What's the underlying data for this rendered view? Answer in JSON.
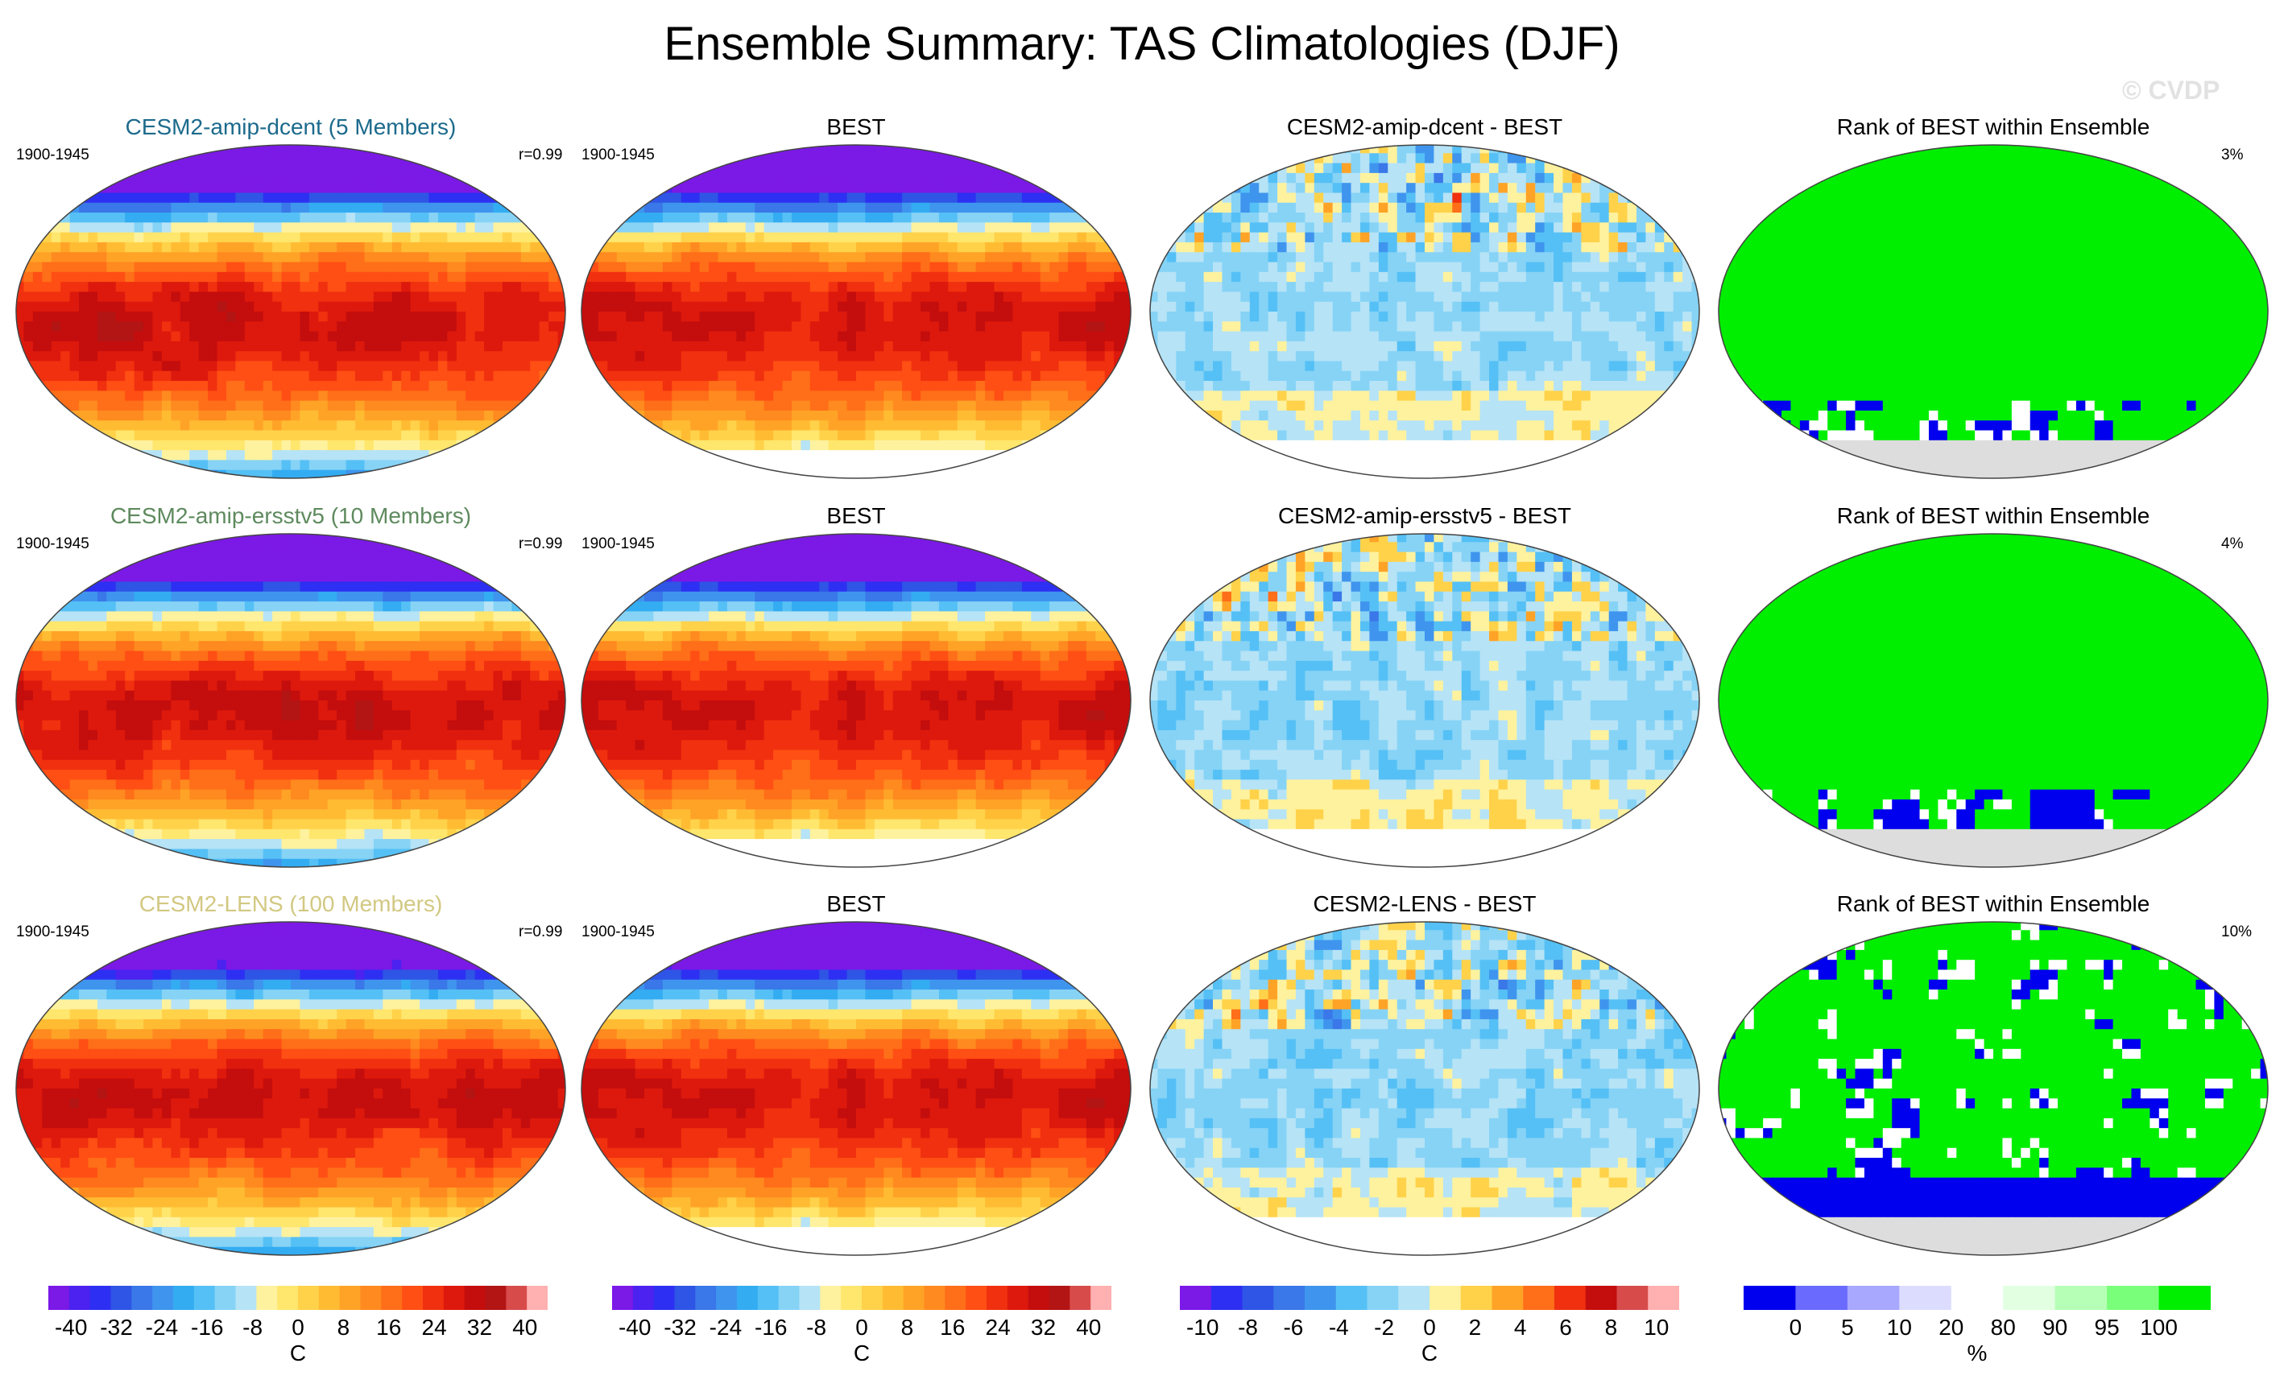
{
  "title": "Ensemble Summary: TAS Climatologies (DJF)",
  "watermark": "© CVDP",
  "chart_data": [
    {
      "type": "heatmap",
      "row": 0,
      "col": 0,
      "kind": "temp",
      "title": "CESM2-amip-dcent (5 Members)",
      "title_color": "#1c6a8c",
      "period": "1900-1945",
      "stat": "r=0.99",
      "units": "C",
      "ylim": [
        -40,
        40
      ],
      "seed": 3
    },
    {
      "type": "heatmap",
      "row": 0,
      "col": 1,
      "kind": "temp",
      "title": "BEST",
      "title_color": "#000000",
      "period": "1900-1945",
      "stat": "",
      "units": "C",
      "ylim": [
        -40,
        40
      ],
      "seed": 5
    },
    {
      "type": "heatmap",
      "row": 0,
      "col": 2,
      "kind": "diff",
      "title": "CESM2-amip-dcent - BEST",
      "title_color": "#000000",
      "period": "",
      "stat": "",
      "units": "C",
      "ylim": [
        -10,
        10
      ],
      "seed": 7
    },
    {
      "type": "heatmap",
      "row": 0,
      "col": 3,
      "kind": "rank",
      "title": "Rank of BEST within Ensemble",
      "title_color": "#000000",
      "period": "",
      "stat": "3%",
      "units": "%",
      "seed": 11,
      "level": 0.05
    },
    {
      "type": "heatmap",
      "row": 1,
      "col": 0,
      "kind": "temp",
      "title": "CESM2-amip-ersstv5 (10 Members)",
      "title_color": "#5e8a5e",
      "period": "1900-1945",
      "stat": "r=0.99",
      "units": "C",
      "ylim": [
        -40,
        40
      ],
      "seed": 13
    },
    {
      "type": "heatmap",
      "row": 1,
      "col": 1,
      "kind": "temp",
      "title": "BEST",
      "title_color": "#000000",
      "period": "1900-1945",
      "stat": "",
      "units": "C",
      "ylim": [
        -40,
        40
      ],
      "seed": 5
    },
    {
      "type": "heatmap",
      "row": 1,
      "col": 2,
      "kind": "diff",
      "title": "CESM2-amip-ersstv5 - BEST",
      "title_color": "#000000",
      "period": "",
      "stat": "",
      "units": "C",
      "ylim": [
        -10,
        10
      ],
      "seed": 17
    },
    {
      "type": "heatmap",
      "row": 1,
      "col": 3,
      "kind": "rank",
      "title": "Rank of BEST within Ensemble",
      "title_color": "#000000",
      "period": "",
      "stat": "4%",
      "units": "%",
      "seed": 19,
      "level": 0.12
    },
    {
      "type": "heatmap",
      "row": 2,
      "col": 0,
      "kind": "temp",
      "title": "CESM2-LENS (100 Members)",
      "title_color": "#d2c882",
      "period": "1900-1945",
      "stat": "r=0.99",
      "units": "C",
      "ylim": [
        -40,
        40
      ],
      "seed": 23
    },
    {
      "type": "heatmap",
      "row": 2,
      "col": 1,
      "kind": "temp",
      "title": "BEST",
      "title_color": "#000000",
      "period": "1900-1945",
      "stat": "",
      "units": "C",
      "ylim": [
        -40,
        40
      ],
      "seed": 5
    },
    {
      "type": "heatmap",
      "row": 2,
      "col": 2,
      "kind": "diff",
      "title": "CESM2-LENS - BEST",
      "title_color": "#000000",
      "period": "",
      "stat": "",
      "units": "C",
      "ylim": [
        -10,
        10
      ],
      "seed": 29
    },
    {
      "type": "heatmap",
      "row": 2,
      "col": 3,
      "kind": "rank",
      "title": "Rank of BEST within Ensemble",
      "title_color": "#000000",
      "period": "",
      "stat": "10%",
      "units": "%",
      "seed": 31,
      "level": 0.55
    }
  ],
  "colorbars": [
    {
      "name": "temp-colorbar-1",
      "unit": "C",
      "labels": [
        "-40",
        "-32",
        "-24",
        "-16",
        "-8",
        "0",
        "8",
        "16",
        "24",
        "32",
        "40"
      ],
      "colors": [
        "#7b19e6",
        "#4c22f0",
        "#2d30f2",
        "#2e55e5",
        "#3a77e8",
        "#3f95ee",
        "#33acf2",
        "#55c0f5",
        "#86d3f6",
        "#b6e3f6",
        "#fff29e",
        "#ffe66d",
        "#ffd24a",
        "#ffbc33",
        "#ffa327",
        "#ff8a1f",
        "#ff6e18",
        "#ff4f14",
        "#f0300f",
        "#dd190d",
        "#c40d0d",
        "#b31414",
        "#d84b4b",
        "#ffb0b0"
      ]
    },
    {
      "name": "temp-colorbar-2",
      "unit": "C",
      "labels": [
        "-40",
        "-32",
        "-24",
        "-16",
        "-8",
        "0",
        "8",
        "16",
        "24",
        "32",
        "40"
      ],
      "colors": [
        "#7b19e6",
        "#4c22f0",
        "#2d30f2",
        "#2e55e5",
        "#3a77e8",
        "#3f95ee",
        "#33acf2",
        "#55c0f5",
        "#86d3f6",
        "#b6e3f6",
        "#fff29e",
        "#ffe66d",
        "#ffd24a",
        "#ffbc33",
        "#ffa327",
        "#ff8a1f",
        "#ff6e18",
        "#ff4f14",
        "#f0300f",
        "#dd190d",
        "#c40d0d",
        "#b31414",
        "#d84b4b",
        "#ffb0b0"
      ]
    },
    {
      "name": "diff-colorbar",
      "unit": "C",
      "labels": [
        "-10",
        "-8",
        "-6",
        "-4",
        "-2",
        "0",
        "2",
        "4",
        "6",
        "8",
        "10"
      ],
      "colors": [
        "#7b19e6",
        "#2d30f2",
        "#2e55e5",
        "#3a77e8",
        "#3f95ee",
        "#55c0f5",
        "#86d3f6",
        "#b6e3f6",
        "#fff29e",
        "#ffd24a",
        "#ffa327",
        "#ff6e18",
        "#f0300f",
        "#c40d0d",
        "#d84b4b",
        "#ffb0b0"
      ]
    },
    {
      "name": "rank-colorbar",
      "unit": "%",
      "labels": [
        "0",
        "5",
        "10",
        "20",
        "80",
        "90",
        "95",
        "100"
      ],
      "colors": [
        "#0000ee",
        "#6a6aff",
        "#a8a8ff",
        "#dcdcff",
        "#ffffff",
        "#e2ffe2",
        "#b6ffb6",
        "#7aff7a",
        "#00ee00"
      ]
    }
  ]
}
